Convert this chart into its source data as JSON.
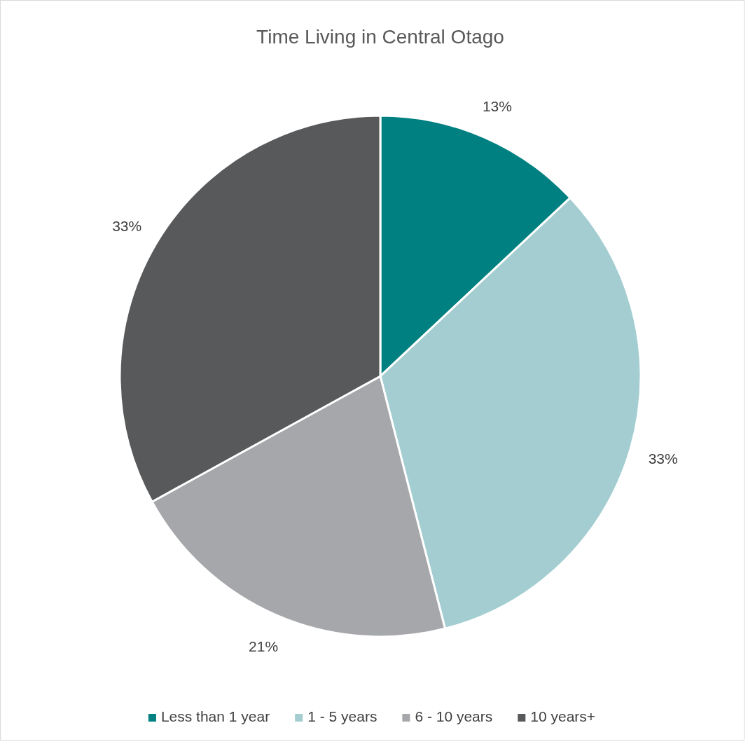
{
  "chart_data": {
    "type": "pie",
    "title": "Time Living in Central Otago",
    "categories": [
      "Less than 1 year",
      "1 - 5 years",
      "6 - 10 years",
      "10 years+"
    ],
    "values": [
      13,
      33,
      21,
      33
    ],
    "colors": [
      "#008080",
      "#a3cdd1",
      "#a6a7aa",
      "#58595b"
    ],
    "value_labels": [
      "13%",
      "33%",
      "21%",
      "33%"
    ],
    "legend": "bottom"
  }
}
